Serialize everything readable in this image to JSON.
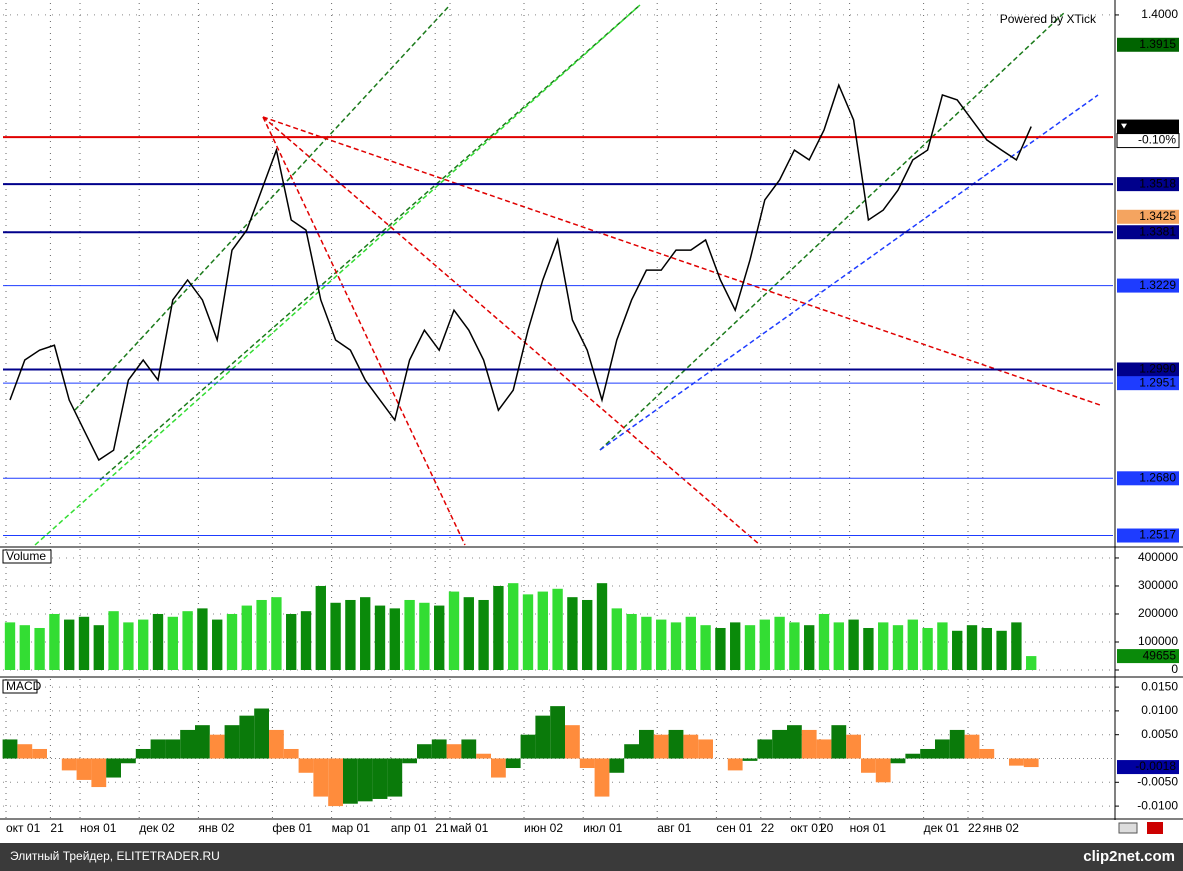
{
  "chart_data": [
    {
      "type": "line",
      "color": "#000000",
      "categories": [
        "окт 01",
        null,
        null,
        "21",
        null,
        "ноя 01",
        null,
        null,
        null,
        "дек 02",
        null,
        null,
        null,
        "янв 02",
        null,
        null,
        null,
        null,
        "фев 01",
        null,
        null,
        null,
        "мар 01",
        null,
        null,
        null,
        "апр 01",
        null,
        null,
        "21",
        "май 01",
        null,
        null,
        null,
        null,
        "июн 02",
        null,
        null,
        null,
        "июл 01",
        null,
        null,
        null,
        null,
        "авг 01",
        null,
        null,
        null,
        "сен 01",
        null,
        null,
        "22",
        null,
        "окт 01",
        null,
        "20",
        null,
        "ноя 01",
        null,
        null,
        null,
        null,
        "дек 01",
        null,
        null,
        "22",
        "янв 02",
        null,
        null,
        null
      ],
      "values": [
        1.2903,
        1.3017,
        1.3045,
        1.3059,
        1.2903,
        1.2817,
        1.2732,
        1.276,
        1.296,
        1.3017,
        1.296,
        1.3188,
        1.3245,
        1.3188,
        1.3074,
        1.333,
        1.3387,
        1.3501,
        1.3615,
        1.3416,
        1.3387,
        1.3188,
        1.3074,
        1.3045,
        1.296,
        1.2903,
        1.2846,
        1.3017,
        1.3102,
        1.3045,
        1.3159,
        1.3102,
        1.3017,
        1.2874,
        1.2931,
        1.3102,
        1.3245,
        1.3359,
        1.3131,
        1.3045,
        1.2903,
        1.3074,
        1.3188,
        1.3273,
        1.3273,
        1.333,
        1.333,
        1.3359,
        1.3245,
        1.3159,
        1.3302,
        1.3473,
        1.353,
        1.3615,
        1.3587,
        1.3672,
        1.38,
        1.3701,
        1.3416,
        1.3444,
        1.3501,
        1.3587,
        1.3615,
        1.3772,
        1.3758,
        1.3701,
        1.3644,
        1.3615,
        1.3587,
        1.3682
      ],
      "ylim": [
        1.249,
        1.4034
      ],
      "yticks": [
        {
          "value": 1.4,
          "label": "1.4000"
        }
      ],
      "grid": true,
      "change_label": "-0.10%",
      "levels": [
        {
          "value": 1.3915,
          "color": "#006400",
          "line": false,
          "tag": true,
          "width": 1
        },
        {
          "value": 1.3652,
          "color": "#e00000",
          "line": true,
          "tag": false,
          "width": 2
        },
        {
          "value": 1.3518,
          "color": "#00008b",
          "line": true,
          "tag": true,
          "width": 2
        },
        {
          "value": 1.3425,
          "color": "#f4a460",
          "line": false,
          "tag": true,
          "width": 1
        },
        {
          "value": 1.3381,
          "color": "#00008b",
          "line": true,
          "tag": true,
          "width": 2
        },
        {
          "value": 1.3229,
          "color": "#1e3cff",
          "line": true,
          "tag": true,
          "width": 1
        },
        {
          "value": 1.299,
          "label": "1.2990",
          "color": "#00008b",
          "line": true,
          "tag": true,
          "width": 2
        },
        {
          "value": 1.2951,
          "color": "#1e3cff",
          "line": true,
          "tag": true,
          "width": 1
        },
        {
          "value": 1.268,
          "label": "1.2680",
          "color": "#1e3cff",
          "line": true,
          "tag": true,
          "width": 1
        },
        {
          "value": 1.2517,
          "color": "#1e3cff",
          "line": true,
          "tag": true,
          "width": 1
        }
      ]
    },
    {
      "type": "bar",
      "title": "Volume",
      "up_color": "#33dd33",
      "down_color": "#0a8a0a",
      "values": [
        170000,
        160000,
        150000,
        200000,
        180000,
        190000,
        160000,
        210000,
        170000,
        180000,
        200000,
        190000,
        210000,
        220000,
        180000,
        200000,
        230000,
        250000,
        260000,
        200000,
        210000,
        300000,
        240000,
        250000,
        260000,
        230000,
        220000,
        250000,
        240000,
        230000,
        280000,
        260000,
        250000,
        300000,
        310000,
        270000,
        280000,
        290000,
        260000,
        250000,
        310000,
        220000,
        200000,
        190000,
        180000,
        170000,
        190000,
        160000,
        150000,
        170000,
        160000,
        180000,
        190000,
        170000,
        160000,
        200000,
        170000,
        180000,
        150000,
        170000,
        160000,
        180000,
        150000,
        170000,
        140000,
        160000,
        150000,
        140000,
        170000,
        49655
      ],
      "ylim": [
        0,
        432000
      ],
      "yticks": [
        0,
        100000,
        200000,
        300000,
        400000
      ]
    },
    {
      "type": "bar",
      "title": "MACD",
      "up_color": "#0a7a0a",
      "down_color": "#ff8c3c",
      "values": [
        0.004,
        0.003,
        0.002,
        0.0,
        -0.0025,
        -0.0045,
        -0.006,
        -0.004,
        -0.001,
        0.002,
        0.004,
        0.004,
        0.006,
        0.007,
        0.005,
        0.007,
        0.009,
        0.0105,
        0.006,
        0.002,
        -0.003,
        -0.008,
        -0.01,
        -0.0095,
        -0.009,
        -0.0085,
        -0.008,
        -0.001,
        0.003,
        0.004,
        0.003,
        0.004,
        0.001,
        -0.004,
        -0.002,
        0.005,
        0.009,
        0.011,
        0.007,
        -0.002,
        -0.008,
        -0.003,
        0.003,
        0.006,
        0.005,
        0.006,
        0.005,
        0.004,
        0.0,
        -0.0025,
        -0.0005,
        0.004,
        0.006,
        0.007,
        0.006,
        0.004,
        0.007,
        0.005,
        -0.003,
        -0.005,
        -0.001,
        0.001,
        0.002,
        0.004,
        0.006,
        0.005,
        0.002,
        0.0,
        -0.0015,
        -0.0018
      ],
      "ylim": [
        -0.0125,
        0.0167
      ],
      "yticks": [
        {
          "value": 0.015,
          "label": "0.0150"
        },
        {
          "value": 0.01,
          "label": "0.0100"
        },
        {
          "value": 0.005,
          "label": "0.0050"
        },
        {
          "value": -0.005,
          "label": "-0.0050"
        },
        {
          "value": -0.01,
          "label": "-0.0100"
        }
      ]
    }
  ],
  "watermark": "Powered by XTick",
  "footer": {
    "left": "Элитный Трейдер, ELITETRADER.RU",
    "brand": "clip2net.com"
  }
}
